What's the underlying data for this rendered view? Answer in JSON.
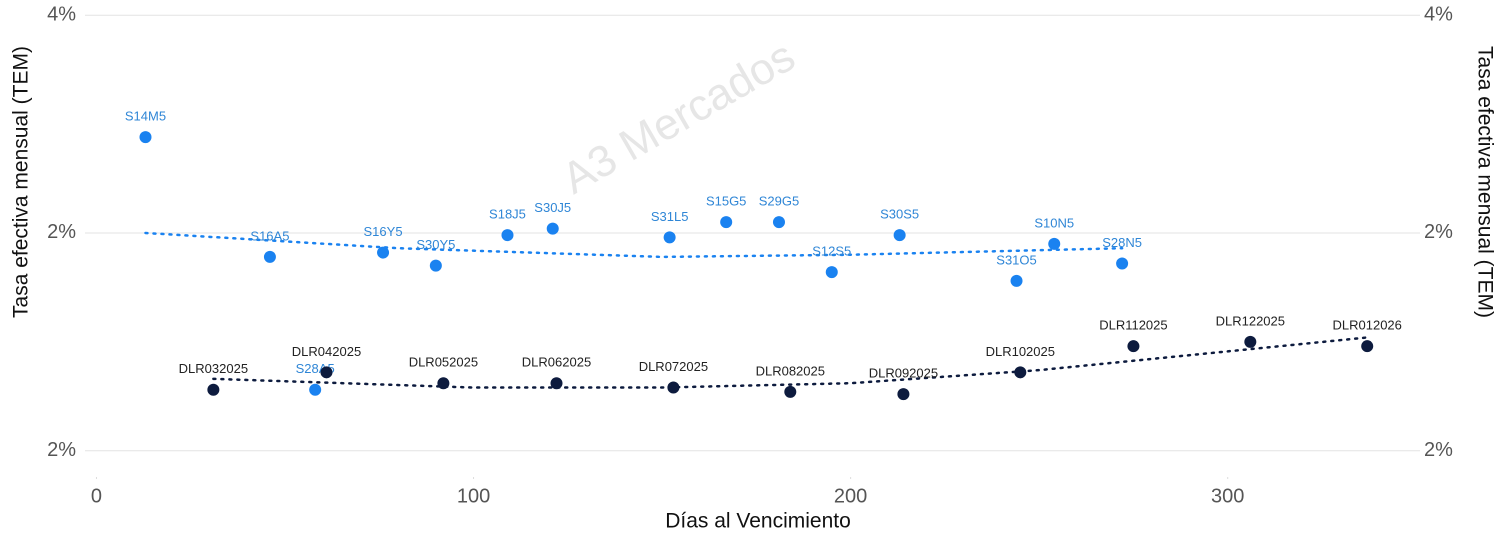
{
  "chart_data": {
    "type": "scatter",
    "watermark": "A3 Mercados",
    "x_label": "Días al Vencimiento",
    "y_label": "Tasa efectiva mensual (TEM)",
    "y2_label": "Tasa efectiva mensual (TEM)",
    "xlim": [
      -11,
      351
    ],
    "xticks": [
      0,
      100,
      200,
      300
    ],
    "ylim": [
      1.37,
      3.57
    ],
    "yticks": [
      {
        "value": 3.5,
        "label": "4%"
      },
      {
        "value": 2.5,
        "label": "2%"
      },
      {
        "value": 1.5,
        "label": "2%"
      }
    ],
    "grid": true,
    "series": [
      {
        "color": "#1a82f0",
        "label_color": "#2f86d6",
        "labels": [
          "S14M5",
          "S16A5",
          "S16Y5",
          "S30Y5",
          "S18J5",
          "S30J5",
          "S31L5",
          "S15G5",
          "S29G5",
          "S12S5",
          "S30S5",
          "S31O5",
          "S10N5",
          "S28N5",
          "S28A5"
        ],
        "x": [
          13,
          46,
          76,
          90,
          109,
          121,
          152,
          167,
          181,
          195,
          213,
          244,
          254,
          272,
          58
        ],
        "values": [
          2.94,
          2.39,
          2.41,
          2.35,
          2.49,
          2.52,
          2.48,
          2.55,
          2.55,
          2.32,
          2.49,
          2.28,
          2.45,
          2.36,
          1.78
        ],
        "trend_x": [
          13,
          80,
          150,
          200,
          272
        ],
        "trend_values": [
          2.5,
          2.43,
          2.39,
          2.4,
          2.43
        ]
      },
      {
        "color": "#0d1b3e",
        "label_color": "#222222",
        "labels": [
          "DLR032025",
          "DLR042025",
          "DLR052025",
          "DLR062025",
          "DLR072025",
          "DLR082025",
          "DLR092025",
          "DLR102025",
          "DLR112025",
          "DLR122025",
          "DLR012026"
        ],
        "x": [
          31,
          61,
          92,
          122,
          153,
          184,
          214,
          245,
          275,
          306,
          337
        ],
        "values": [
          1.78,
          1.86,
          1.81,
          1.81,
          1.79,
          1.77,
          1.76,
          1.86,
          1.98,
          2.0,
          1.98
        ],
        "trend_x": [
          31,
          100,
          150,
          200,
          250,
          337
        ],
        "trend_values": [
          1.83,
          1.79,
          1.79,
          1.81,
          1.87,
          2.02
        ]
      }
    ]
  }
}
